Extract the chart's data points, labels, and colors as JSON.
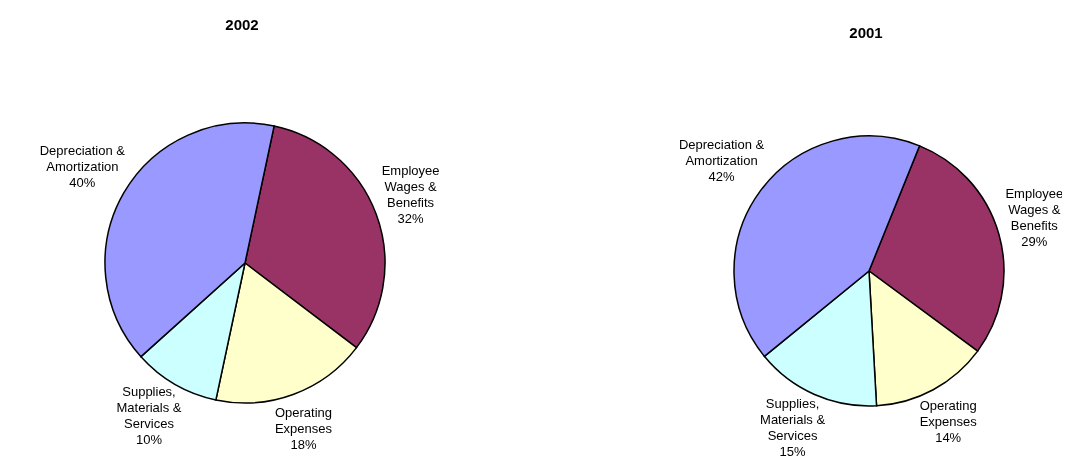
{
  "chart_data": [
    {
      "type": "pie",
      "title": "2002",
      "categories": [
        "Employee\nWages &\nBenefits",
        "Operating\nExpenses",
        "Supplies,\nMaterials &\nServices",
        "Depreciation &\nAmortization"
      ],
      "values": [
        32,
        18,
        10,
        40
      ],
      "value_labels": [
        "32%",
        "18%",
        "10%",
        "40%"
      ],
      "colors": [
        "#993366",
        "#ffffcc",
        "#ccffff",
        "#9999ff"
      ]
    },
    {
      "type": "pie",
      "title": "2001",
      "categories": [
        "Employee\nWages &\nBenefits",
        "Operating\nExpenses",
        "Supplies,\nMaterials &\nServices",
        "Depreciation &\nAmortization"
      ],
      "values": [
        29,
        14,
        15,
        42
      ],
      "value_labels": [
        "29%",
        "14%",
        "15%",
        "42%"
      ],
      "colors": [
        "#993366",
        "#ffffcc",
        "#ccffff",
        "#9999ff"
      ]
    }
  ]
}
